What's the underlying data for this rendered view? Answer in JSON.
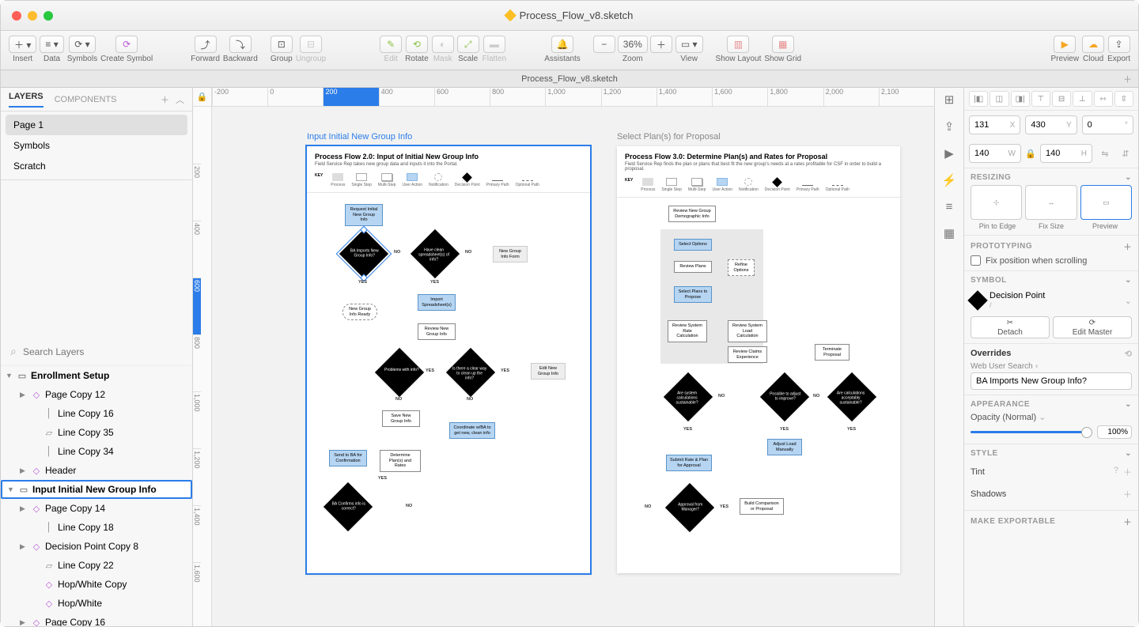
{
  "window": {
    "title": "Process_Flow_v8.sketch",
    "doc_tab": "Process_Flow_v8.sketch"
  },
  "toolbar": {
    "insert": "Insert",
    "data": "Data",
    "symbols": "Symbols",
    "create_symbol": "Create Symbol",
    "forward": "Forward",
    "backward": "Backward",
    "group": "Group",
    "ungroup": "Ungroup",
    "edit": "Edit",
    "rotate": "Rotate",
    "mask": "Mask",
    "scale": "Scale",
    "flatten": "Flatten",
    "assistants": "Assistants",
    "zoom": "Zoom",
    "zoom_val": "36%",
    "view": "View",
    "show_layout": "Show Layout",
    "show_grid": "Show Grid",
    "preview": "Preview",
    "cloud": "Cloud",
    "export": "Export"
  },
  "left": {
    "tab_layers": "LAYERS",
    "tab_components": "COMPONENTS",
    "pages": [
      "Page 1",
      "Symbols",
      "Scratch"
    ],
    "search_ph": "Search Layers",
    "tree": [
      {
        "chev": "▼",
        "ico": "▭",
        "cls": "bold",
        "txt": "Enrollment Setup"
      },
      {
        "chev": "▶",
        "ico": "◇",
        "ind": 1,
        "sym": true,
        "txt": "Page Copy 12"
      },
      {
        "chev": "",
        "ico": "│",
        "ind": 2,
        "txt": "Line Copy 16"
      },
      {
        "chev": "",
        "ico": "▱",
        "ind": 2,
        "txt": "Line Copy 35"
      },
      {
        "chev": "",
        "ico": "│",
        "ind": 2,
        "txt": "Line Copy 34"
      },
      {
        "chev": "▶",
        "ico": "◇",
        "ind": 1,
        "sym": true,
        "txt": "Header"
      },
      {
        "chev": "▼",
        "ico": "▭",
        "cls": "sel-art",
        "txt": "Input Initial New Group Info"
      },
      {
        "chev": "▶",
        "ico": "◇",
        "ind": 1,
        "sym": true,
        "txt": "Page Copy 14"
      },
      {
        "chev": "",
        "ico": "│",
        "ind": 2,
        "txt": "Line Copy 18"
      },
      {
        "chev": "▶",
        "ico": "◇",
        "ind": 1,
        "sym": true,
        "txt": "Decision Point Copy 8"
      },
      {
        "chev": "",
        "ico": "▱",
        "ind": 2,
        "txt": "Line Copy 22"
      },
      {
        "chev": "",
        "ico": "◇",
        "ind": 2,
        "sym": true,
        "txt": "Hop/White Copy"
      },
      {
        "chev": "",
        "ico": "◇",
        "ind": 2,
        "sym": true,
        "txt": "Hop/White"
      },
      {
        "chev": "▶",
        "ico": "◇",
        "ind": 1,
        "sym": true,
        "txt": "Page Copy 16"
      }
    ]
  },
  "ruler": {
    "h": [
      "-200",
      "0",
      "200",
      "400",
      "600",
      "800",
      "1,000",
      "1,200",
      "1,400",
      "1,600",
      "1,800",
      "2,000",
      "2,100"
    ],
    "h_sel_idx": 2,
    "v": [
      "",
      "200",
      "400",
      "600",
      "800",
      "1,000",
      "1,200",
      "1,400",
      "1,600"
    ],
    "v_sel_idx": 3
  },
  "artboards": {
    "a1": {
      "title": "Input Initial New Group Info",
      "header": "Process Flow 2.0: Input of Initial New Group Info",
      "sub": "Field Service Rep takes new group data and inputs it into the Portal.",
      "key_label": "KEY",
      "legend": [
        "Process",
        "Single Step",
        "Multi-Step",
        "User Action",
        "Notification",
        "Decision Point",
        "Primary Path",
        "Optional Path"
      ],
      "nodes": {
        "n1": "Request Initial New Group Info",
        "d1": "BA Imports New Group Info?",
        "d2": "Have clean spreadsheet(s) of info?",
        "n2": "New Group Info Form",
        "n3": "New Group Info Ready",
        "n4": "Import Spreadsheet(s)",
        "n5": "Review New Group Info",
        "d3": "Problems with info?",
        "d4": "Is there a clear way to clean up the info?",
        "n6": "Edit New Group Info",
        "n7": "Save New Group Info",
        "n8": "Coordinate w/BA to get new, clean info",
        "n9": "Send to BA for Confirmation",
        "n10": "Determine Plan(s) and Rates",
        "d5": "BA Confirms info is correct?"
      },
      "labels": {
        "yes": "YES",
        "no": "NO"
      }
    },
    "a2": {
      "title": "Select Plan(s) for Proposal",
      "header": "Process Flow 3.0: Determine Plan(s) and Rates for Proposal",
      "sub": "Field Service Rep finds the plan or plans that best fit the new group's needs at a rates profitable for CSF in order to build a proposal.",
      "key_label": "KEY",
      "legend": [
        "Process",
        "Single Step",
        "Multi-Step",
        "User Action",
        "Notification",
        "Decision Point",
        "Primary Path",
        "Optional Path"
      ],
      "nodes": {
        "n1": "Review New Group Demographic Info",
        "n2": "Select Options",
        "n3": "Review Plans",
        "n4": "Refine Options",
        "n5": "Select Plans to Propose",
        "n6": "Review System Rate Calculation",
        "n7": "Review System Load Calculation",
        "n8": "Review Claims Experience",
        "n9": "Terminate Proposal",
        "d1": "Are system calculations sustainable?",
        "d2": "Possible to adjust to improve?",
        "d3": "Are calculations acceptably sustainable?",
        "n10": "Adjust Load Manually",
        "n11": "Submit Rate & Plan for Approval",
        "d4": "Approval from Manager?",
        "n12": "Build Comparison or Proposal"
      },
      "labels": {
        "yes": "YES",
        "no": "NO"
      }
    }
  },
  "inspector": {
    "pos": {
      "x": "131",
      "xl": "X",
      "y": "430",
      "yl": "Y",
      "r": "0",
      "rl": "°",
      "w": "140",
      "wl": "W",
      "h": "140",
      "hl": "H"
    },
    "resizing": {
      "title": "RESIZING",
      "pin": "Pin to Edge",
      "fix": "Fix Size",
      "preview": "Preview"
    },
    "proto": {
      "title": "PROTOTYPING",
      "chk": "Fix position when scrolling"
    },
    "symbol": {
      "title": "SYMBOL",
      "name": "Decision Point",
      "path": "/",
      "detach": "Detach",
      "edit": "Edit Master"
    },
    "overrides": {
      "title": "Overrides",
      "field_lbl": "Web User Search",
      "field_val": "BA Imports New Group Info?"
    },
    "appearance": {
      "title": "APPEARANCE",
      "opacity_lbl": "Opacity (Normal)",
      "opacity": "100%"
    },
    "style": {
      "title": "STYLE",
      "tint": "Tint",
      "shadows": "Shadows"
    },
    "export": {
      "title": "MAKE EXPORTABLE"
    }
  },
  "colors": {
    "accent": "#2b7de9",
    "ua_blue": "#b6d5f2",
    "diamond": "#000000"
  }
}
